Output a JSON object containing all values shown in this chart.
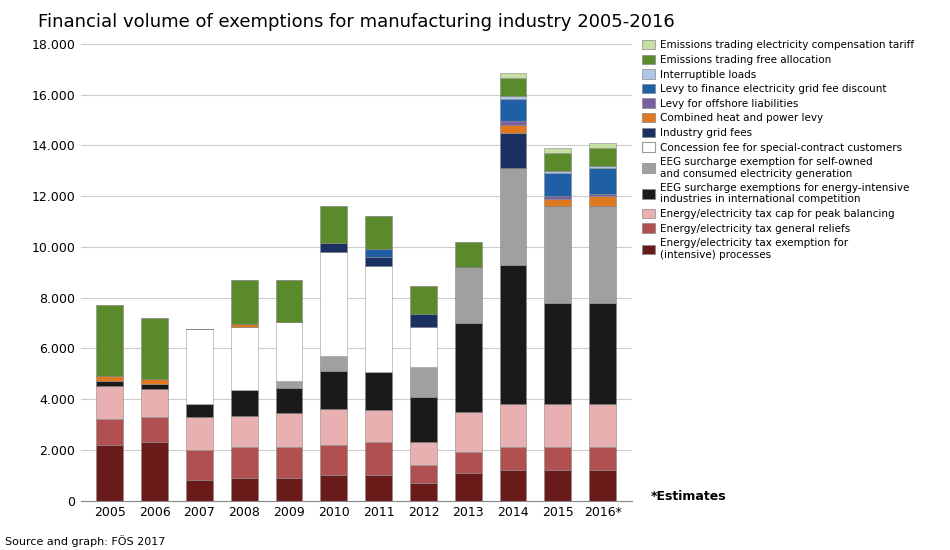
{
  "title": "Financial volume of exemptions for manufacturing industry 2005-2016",
  "source": "Source and graph: FÖS 2017",
  "estimates_label": "*Estimates",
  "years": [
    "2005",
    "2006",
    "2007",
    "2008",
    "2009",
    "2010",
    "2011",
    "2012",
    "2013",
    "2014",
    "2015",
    "2016*"
  ],
  "ylim": [
    0,
    18000
  ],
  "yticks": [
    0,
    2000,
    4000,
    6000,
    8000,
    10000,
    12000,
    14000,
    16000,
    18000
  ],
  "ytick_labels": [
    "0",
    "2.000",
    "4.000",
    "6.000",
    "8.000",
    "10.000",
    "12.000",
    "14.000",
    "16.000",
    "18.000"
  ],
  "series": [
    {
      "label": "Energy/electricity tax exemption for\n(intensive) processes",
      "color": "#6b1a1a",
      "values": [
        2200,
        2300,
        800,
        900,
        900,
        1000,
        1000,
        700,
        1100,
        1200,
        1200,
        1200
      ]
    },
    {
      "label": "Energy/electricity tax general reliefs",
      "color": "#b05050",
      "values": [
        1000,
        1000,
        1200,
        1200,
        1200,
        1200,
        1300,
        700,
        800,
        900,
        900,
        900
      ]
    },
    {
      "label": "Energy/electricity tax cap for peak balancing",
      "color": "#e8b0b0",
      "values": [
        1300,
        1100,
        1300,
        1250,
        1350,
        1400,
        1250,
        900,
        1600,
        1700,
        1700,
        1700
      ]
    },
    {
      "label": "EEG surcharge exemptions for energy-intensive\nindustries in international competition",
      "color": "#1a1a1a",
      "values": [
        200,
        200,
        500,
        1000,
        1000,
        1500,
        1500,
        1800,
        3500,
        5500,
        4000,
        4000
      ]
    },
    {
      "label": "EEG surcharge exemption for self-owned\nand consumed electricity generation",
      "color": "#a0a0a0",
      "values": [
        0,
        0,
        0,
        0,
        250,
        600,
        0,
        1150,
        2200,
        3800,
        3800,
        3800
      ]
    },
    {
      "label": "Concession fee for special-contract customers",
      "color": "#ffffff",
      "values": [
        0,
        0,
        2950,
        2500,
        2350,
        4100,
        4200,
        1600,
        0,
        0,
        0,
        0
      ]
    },
    {
      "label": "Industry grid fees",
      "color": "#1a3060",
      "values": [
        0,
        0,
        0,
        0,
        0,
        350,
        350,
        500,
        0,
        1400,
        0,
        0
      ]
    },
    {
      "label": "Combined heat and power levy",
      "color": "#e07820",
      "values": [
        200,
        200,
        0,
        100,
        0,
        0,
        0,
        0,
        0,
        300,
        300,
        400
      ]
    },
    {
      "label": "Levy for offshore liabilities",
      "color": "#7a5fa0",
      "values": [
        0,
        0,
        0,
        0,
        0,
        0,
        0,
        0,
        0,
        150,
        100,
        100
      ]
    },
    {
      "label": "Levy to finance electricity grid fee discount",
      "color": "#1f5fa6",
      "values": [
        0,
        0,
        0,
        0,
        0,
        0,
        300,
        0,
        0,
        900,
        900,
        1000
      ]
    },
    {
      "label": "Interruptible loads",
      "color": "#aec6e8",
      "values": [
        0,
        0,
        0,
        0,
        0,
        0,
        0,
        0,
        0,
        100,
        100,
        100
      ]
    },
    {
      "label": "Emissions trading free allocation",
      "color": "#5a8a2a",
      "values": [
        2800,
        2400,
        0,
        1750,
        1650,
        1450,
        1300,
        1100,
        1000,
        700,
        700,
        700
      ]
    },
    {
      "label": "Emissions trading electricity compensation tariff",
      "color": "#c6e0a4",
      "values": [
        0,
        0,
        0,
        0,
        0,
        0,
        0,
        0,
        0,
        200,
        200,
        200
      ]
    }
  ],
  "bar_width": 0.6,
  "bar_edgecolor": "#888888",
  "bar_linewidth": 0.4
}
